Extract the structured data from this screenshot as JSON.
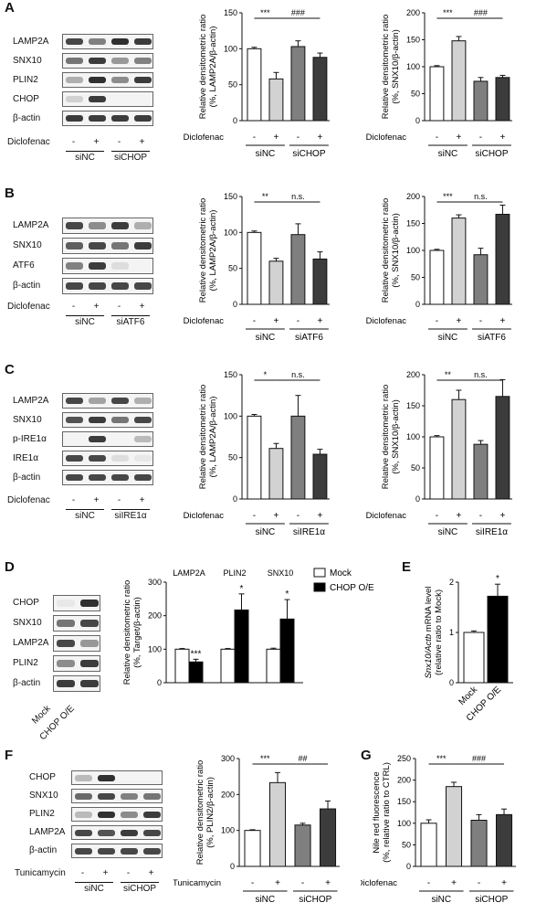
{
  "letters": {
    "A": "A",
    "B": "B",
    "C": "C",
    "D": "D",
    "E": "E",
    "F": "F",
    "G": "G"
  },
  "treatment": {
    "diclofenac": "Diclofenac",
    "tunicamycin": "Tunicamycin"
  },
  "signs": {
    "minus": "-",
    "plus": "+"
  },
  "groups": {
    "siNC": "siNC",
    "siCHOP": "siCHOP",
    "siATF6": "siATF6",
    "siIRE1a": "siIRE1α",
    "mock": "Mock",
    "chop_oe": "CHOP O/E"
  },
  "blots": {
    "A": [
      "LAMP2A",
      "SNX10",
      "PLIN2",
      "CHOP",
      "β-actin"
    ],
    "B": [
      "LAMP2A",
      "SNX10",
      "ATF6",
      "β-actin"
    ],
    "C": [
      "LAMP2A",
      "SNX10",
      "p-IRE1α",
      "IRE1α",
      "β-actin"
    ],
    "D": [
      "CHOP",
      "SNX10",
      "LAMP2A",
      "PLIN2",
      "β-actin"
    ],
    "F": [
      "CHOP",
      "SNX10",
      "PLIN2",
      "LAMP2A",
      "β-actin"
    ]
  },
  "colors": {
    "white": "#ffffff",
    "light": "#d2d2d2",
    "mid": "#7f7f7f",
    "dark": "#3c3c3c",
    "black": "#000000"
  },
  "chart_data": [
    {
      "id": "A1",
      "type": "bar",
      "ylabel": "Relative densitometric ratio\n(%, LAMP2A/β-actin)",
      "ylim": [
        0,
        150
      ],
      "yticks": [
        0,
        50,
        100,
        150
      ],
      "values": [
        100,
        58,
        103,
        88
      ],
      "errors": [
        2,
        9,
        8,
        6
      ],
      "sig": [
        {
          "from": 0,
          "to": 1,
          "text": "***"
        },
        {
          "from": 1,
          "to": 3,
          "text": "###"
        }
      ]
    },
    {
      "id": "A2",
      "type": "bar",
      "ylabel": "Relative densitometric ratio\n(%, SNX10/β-actin)",
      "ylim": [
        0,
        200
      ],
      "yticks": [
        0,
        50,
        100,
        150,
        200
      ],
      "values": [
        100,
        148,
        73,
        80
      ],
      "errors": [
        2,
        8,
        7,
        4
      ],
      "sig": [
        {
          "from": 0,
          "to": 1,
          "text": "***"
        },
        {
          "from": 1,
          "to": 3,
          "text": "###"
        }
      ]
    },
    {
      "id": "B1",
      "type": "bar",
      "ylabel": "Relative densitometric ratio\n(%, LAMP2A/β-actin)",
      "ylim": [
        0,
        150
      ],
      "yticks": [
        0,
        50,
        100,
        150
      ],
      "values": [
        100,
        60,
        97,
        63
      ],
      "errors": [
        2,
        4,
        15,
        10
      ],
      "sig": [
        {
          "from": 0,
          "to": 1,
          "text": "**"
        },
        {
          "from": 1,
          "to": 3,
          "text": "n.s."
        }
      ]
    },
    {
      "id": "B2",
      "type": "bar",
      "ylabel": "Relative densitometric ratio\n(%, SNX10/β-actin)",
      "ylim": [
        0,
        200
      ],
      "yticks": [
        0,
        50,
        100,
        150,
        200
      ],
      "values": [
        100,
        160,
        92,
        167
      ],
      "errors": [
        2,
        6,
        12,
        17
      ],
      "sig": [
        {
          "from": 0,
          "to": 1,
          "text": "***"
        },
        {
          "from": 1,
          "to": 3,
          "text": "n.s."
        }
      ]
    },
    {
      "id": "C1",
      "type": "bar",
      "ylabel": "Relative densitometric ratio\n(%, LAMP2A/β-actin)",
      "ylim": [
        0,
        150
      ],
      "yticks": [
        0,
        50,
        100,
        150
      ],
      "values": [
        100,
        61,
        100,
        54
      ],
      "errors": [
        2,
        6,
        25,
        6
      ],
      "sig": [
        {
          "from": 0,
          "to": 1,
          "text": "*"
        },
        {
          "from": 1,
          "to": 3,
          "text": "n.s."
        }
      ]
    },
    {
      "id": "C2",
      "type": "bar",
      "ylabel": "Relative densitometric ratio\n(%, SNX10/β-actin)",
      "ylim": [
        0,
        200
      ],
      "yticks": [
        0,
        50,
        100,
        150,
        200
      ],
      "values": [
        100,
        160,
        88,
        165
      ],
      "errors": [
        2,
        15,
        6,
        27
      ],
      "sig": [
        {
          "from": 0,
          "to": 1,
          "text": "**"
        },
        {
          "from": 1,
          "to": 3,
          "text": "n.s."
        }
      ]
    },
    {
      "id": "D",
      "type": "bar",
      "ylabel": "Relative densitometric ratio\n(%, Target/β-actin)",
      "ylim": [
        0,
        300
      ],
      "yticks": [
        0,
        100,
        200,
        300
      ],
      "categories": [
        "LAMP2A",
        "PLIN2",
        "SNX10"
      ],
      "series": [
        {
          "name": "Mock",
          "values": [
            100,
            100,
            100
          ],
          "errors": [
            2,
            2,
            3
          ]
        },
        {
          "name": "CHOP O/E",
          "values": [
            62,
            217,
            190
          ],
          "errors": [
            8,
            48,
            58
          ]
        }
      ],
      "sig": [
        "***",
        "*",
        "*"
      ]
    },
    {
      "id": "E",
      "type": "bar",
      "ylabel": "Snx10/Actb mRNA level\n(relative ratio to Mock)",
      "ylim": [
        0,
        2
      ],
      "yticks": [
        0,
        1,
        2
      ],
      "categories": [
        "Mock",
        "CHOP O/E"
      ],
      "values": [
        1.0,
        1.72
      ],
      "errors": [
        0.03,
        0.24
      ],
      "sig": [
        "*"
      ]
    },
    {
      "id": "F",
      "type": "bar",
      "ylabel": "Relative densitometric ratio\n(%, PLIN2/β-actin)",
      "ylim": [
        0,
        300
      ],
      "yticks": [
        0,
        100,
        200,
        300
      ],
      "values": [
        100,
        233,
        115,
        160
      ],
      "errors": [
        2,
        28,
        5,
        22
      ],
      "sig": [
        {
          "from": 0,
          "to": 1,
          "text": "***"
        },
        {
          "from": 1,
          "to": 3,
          "text": "##"
        }
      ]
    },
    {
      "id": "G",
      "type": "bar",
      "ylabel": "Nile red fluorescence\n(%, relative ratio to CTRL)",
      "ylim": [
        0,
        250
      ],
      "yticks": [
        0,
        50,
        100,
        150,
        200,
        250
      ],
      "values": [
        100,
        185,
        107,
        120
      ],
      "errors": [
        8,
        10,
        13,
        13
      ],
      "sig": [
        {
          "from": 0,
          "to": 1,
          "text": "***"
        },
        {
          "from": 1,
          "to": 3,
          "text": "###"
        }
      ]
    }
  ]
}
